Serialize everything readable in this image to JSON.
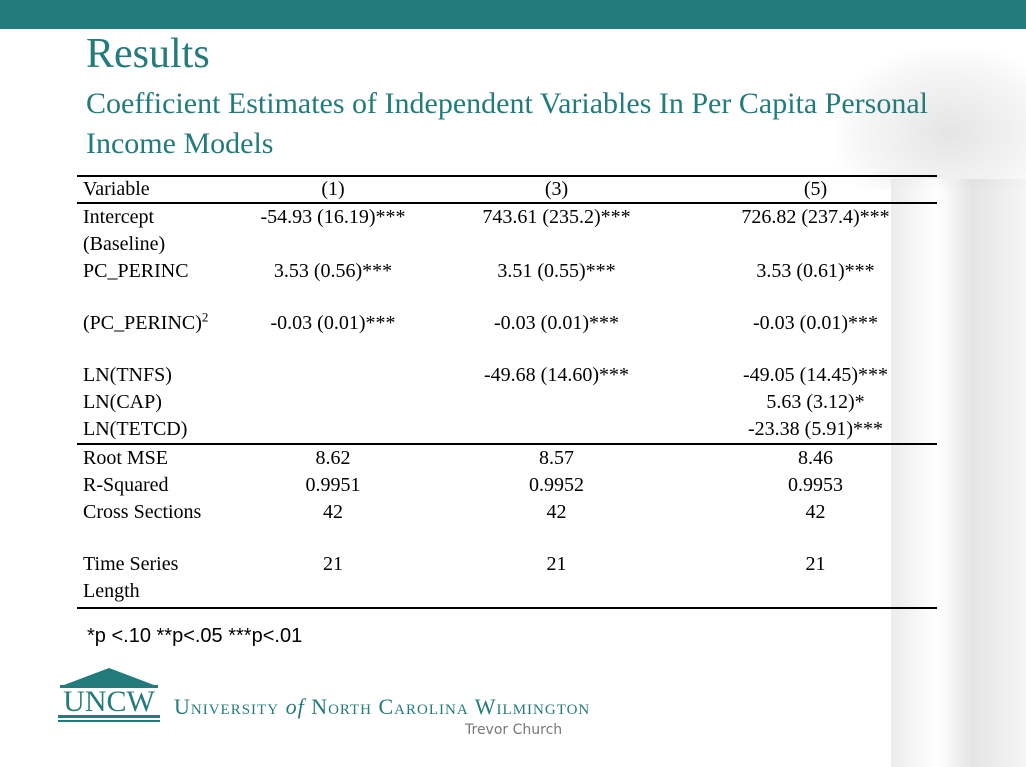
{
  "slide": {
    "title": "Results",
    "subtitle": "Coefficient Estimates of Independent Variables In Per Capita Personal Income Models",
    "accent_color": "#237B7B"
  },
  "table": {
    "headers": [
      "Variable",
      "(1)",
      "(3)",
      "(5)"
    ],
    "rows": {
      "intercept": [
        "Intercept",
        "-54.93 (16.19)***",
        "743.61 (235.2)***",
        "726.82 (237.4)***"
      ],
      "baseline": [
        "(Baseline)",
        "",
        "",
        ""
      ],
      "pc_perinc": [
        "PC_PERINC",
        "3.53 (0.56)***",
        "3.51 (0.55)***",
        "3.53 (0.61)***"
      ],
      "pc_perinc_sq": [
        "(PC_PERINC)",
        "-0.03 (0.01)***",
        "-0.03 (0.01)***",
        "-0.03 (0.01)***"
      ],
      "pc_perinc_sq_exp": "2",
      "ln_tnfs": [
        "LN(TNFS)",
        "",
        "-49.68 (14.60)***",
        "-49.05 (14.45)***"
      ],
      "ln_cap": [
        "LN(CAP)",
        "",
        "",
        "5.63 (3.12)*"
      ],
      "ln_tetcd": [
        "LN(TETCD)",
        "",
        "",
        "-23.38 (5.91)***"
      ],
      "root_mse": [
        "Root MSE",
        "8.62",
        "8.57",
        "8.46"
      ],
      "r_squared": [
        "R-Squared",
        "0.9951",
        "0.9952",
        "0.9953"
      ],
      "cross_sections": [
        "Cross Sections",
        "42",
        "42",
        "42"
      ],
      "time_series": [
        "Time Series",
        "21",
        "21",
        "21"
      ],
      "length": [
        "Length",
        "",
        "",
        ""
      ]
    }
  },
  "footnote": "*p <.10 **p<.05 ***p<.01",
  "footer": {
    "logo_text": "UNCW",
    "university_pre": "University",
    "university_of": "of",
    "university_post": "North Carolina Wilmington",
    "author": "Trevor Church"
  }
}
